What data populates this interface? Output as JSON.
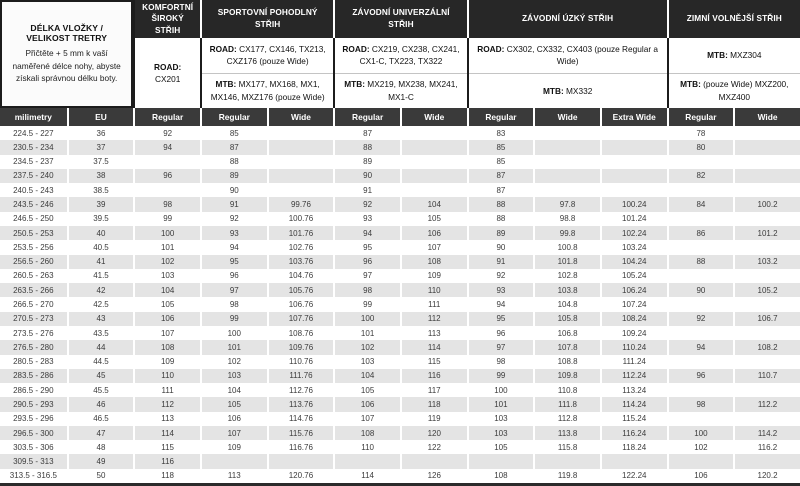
{
  "info": {
    "title": "DÉLKA VLOŽKY / VELIKOST TRETRY",
    "subtitle": "Přičtěte + 5 mm k vaší naměřené délce nohy, abyste získali správnou délku boty."
  },
  "categories": [
    {
      "label": "KOMFORTNÍ ŠIROKÝ STŘIH",
      "models": [
        {
          "prefix": "ROAD:",
          "text": "CX201"
        }
      ]
    },
    {
      "label": "SPORTOVNÍ POHODLNÝ STŘIH",
      "models": [
        {
          "prefix": "ROAD:",
          "text": "CX177, CX146, TX213, CXZ176 (pouze Wide)"
        },
        {
          "prefix": "MTB:",
          "text": "MX177, MX168, MX1, MX146, MXZ176 (pouze Wide)"
        }
      ]
    },
    {
      "label": "ZÁVODNÍ UNIVERZÁLNÍ STŘIH",
      "models": [
        {
          "prefix": "ROAD:",
          "text": "CX219, CX238, CX241, CX1-C, TX223, TX322"
        },
        {
          "prefix": "MTB:",
          "text": "MX219, MX238, MX241, MX1-C"
        }
      ]
    },
    {
      "label": "ZÁVODNÍ ÚZKÝ STŘIH",
      "models": [
        {
          "prefix": "ROAD:",
          "text": "CX302, CX332, CX403 (pouze Regular a Wide)"
        },
        {
          "prefix": "MTB:",
          "text": "MX332"
        }
      ]
    },
    {
      "label": "ZIMNÍ VOLNĚJŠÍ STŘIH",
      "models": [
        {
          "prefix": "MTB:",
          "text": "MXZ304"
        },
        {
          "prefix": "MTB:",
          "text": "(pouze Wide) MXZ200, MXZ400"
        }
      ]
    }
  ],
  "table": {
    "columns": [
      "milimetry",
      "EU",
      "Regular",
      "Regular",
      "Wide",
      "Regular",
      "Wide",
      "Regular",
      "Wide",
      "Extra Wide",
      "Regular",
      "Wide"
    ],
    "rows": [
      [
        "224.5 - 227",
        "36",
        "92",
        "85",
        "",
        "87",
        "",
        "83",
        "",
        "",
        "78",
        ""
      ],
      [
        "230.5 - 234",
        "37",
        "94",
        "87",
        "",
        "88",
        "",
        "85",
        "",
        "",
        "80",
        ""
      ],
      [
        "234.5 - 237",
        "37.5",
        "",
        "88",
        "",
        "89",
        "",
        "85",
        "",
        "",
        "",
        ""
      ],
      [
        "237.5 - 240",
        "38",
        "96",
        "89",
        "",
        "90",
        "",
        "87",
        "",
        "",
        "82",
        ""
      ],
      [
        "240.5 - 243",
        "38.5",
        "",
        "90",
        "",
        "91",
        "",
        "87",
        "",
        "",
        "",
        ""
      ],
      [
        "243.5 - 246",
        "39",
        "98",
        "91",
        "99.76",
        "92",
        "104",
        "88",
        "97.8",
        "100.24",
        "84",
        "100.2"
      ],
      [
        "246.5 - 250",
        "39.5",
        "99",
        "92",
        "100.76",
        "93",
        "105",
        "88",
        "98.8",
        "101.24",
        "",
        ""
      ],
      [
        "250.5 - 253",
        "40",
        "100",
        "93",
        "101.76",
        "94",
        "106",
        "89",
        "99.8",
        "102.24",
        "86",
        "101.2"
      ],
      [
        "253.5 - 256",
        "40.5",
        "101",
        "94",
        "102.76",
        "95",
        "107",
        "90",
        "100.8",
        "103.24",
        "",
        ""
      ],
      [
        "256.5 - 260",
        "41",
        "102",
        "95",
        "103.76",
        "96",
        "108",
        "91",
        "101.8",
        "104.24",
        "88",
        "103.2"
      ],
      [
        "260.5 - 263",
        "41.5",
        "103",
        "96",
        "104.76",
        "97",
        "109",
        "92",
        "102.8",
        "105.24",
        "",
        ""
      ],
      [
        "263.5 - 266",
        "42",
        "104",
        "97",
        "105.76",
        "98",
        "110",
        "93",
        "103.8",
        "106.24",
        "90",
        "105.2"
      ],
      [
        "266.5 - 270",
        "42.5",
        "105",
        "98",
        "106.76",
        "99",
        "111",
        "94",
        "104.8",
        "107.24",
        "",
        ""
      ],
      [
        "270.5 - 273",
        "43",
        "106",
        "99",
        "107.76",
        "100",
        "112",
        "95",
        "105.8",
        "108.24",
        "92",
        "106.7"
      ],
      [
        "273.5 - 276",
        "43.5",
        "107",
        "100",
        "108.76",
        "101",
        "113",
        "96",
        "106.8",
        "109.24",
        "",
        ""
      ],
      [
        "276.5 - 280",
        "44",
        "108",
        "101",
        "109.76",
        "102",
        "114",
        "97",
        "107.8",
        "110.24",
        "94",
        "108.2"
      ],
      [
        "280.5 - 283",
        "44.5",
        "109",
        "102",
        "110.76",
        "103",
        "115",
        "98",
        "108.8",
        "111.24",
        "",
        ""
      ],
      [
        "283.5 - 286",
        "45",
        "110",
        "103",
        "111.76",
        "104",
        "116",
        "99",
        "109.8",
        "112.24",
        "96",
        "110.7"
      ],
      [
        "286.5 - 290",
        "45.5",
        "111",
        "104",
        "112.76",
        "105",
        "117",
        "100",
        "110.8",
        "113.24",
        "",
        ""
      ],
      [
        "290.5 - 293",
        "46",
        "112",
        "105",
        "113.76",
        "106",
        "118",
        "101",
        "111.8",
        "114.24",
        "98",
        "112.2"
      ],
      [
        "293.5 - 296",
        "46.5",
        "113",
        "106",
        "114.76",
        "107",
        "119",
        "103",
        "112.8",
        "115.24",
        "",
        ""
      ],
      [
        "296.5 - 300",
        "47",
        "114",
        "107",
        "115.76",
        "108",
        "120",
        "103",
        "113.8",
        "116.24",
        "100",
        "114.2"
      ],
      [
        "303.5 - 306",
        "48",
        "115",
        "109",
        "116.76",
        "110",
        "122",
        "105",
        "115.8",
        "118.24",
        "102",
        "116.2"
      ],
      [
        "309.5 - 313",
        "49",
        "116",
        "",
        "",
        "",
        "",
        "",
        "",
        "",
        "",
        ""
      ],
      [
        "313.5 - 316.5",
        "50",
        "118",
        "113",
        "120.76",
        "114",
        "126",
        "108",
        "119.8",
        "122.24",
        "106",
        "120.2"
      ]
    ]
  },
  "colors": {
    "category_header_bg": "#272727",
    "column_header_bg": "#3a3a3a",
    "alt_row_bg": "#e4e4e4",
    "border_dark": "#1c1c1c",
    "data_text": "#3c3c3c"
  }
}
